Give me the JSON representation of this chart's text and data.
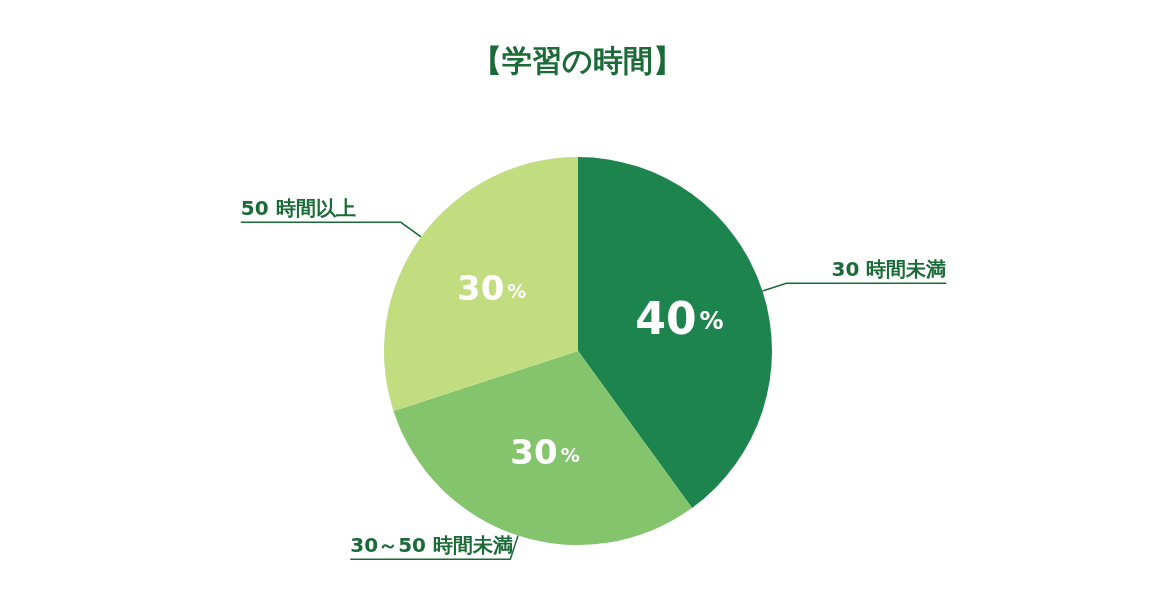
{
  "chart_data": {
    "type": "pie",
    "title": "【学習の時間】",
    "categories": [
      "30 時間未満",
      "30～50 時間未満",
      "50 時間以上"
    ],
    "values": [
      40,
      30,
      30
    ],
    "colors": [
      "#1e844e",
      "#84c46c",
      "#c2dc80"
    ],
    "value_labels": [
      "40%",
      "30%",
      "30%"
    ]
  }
}
